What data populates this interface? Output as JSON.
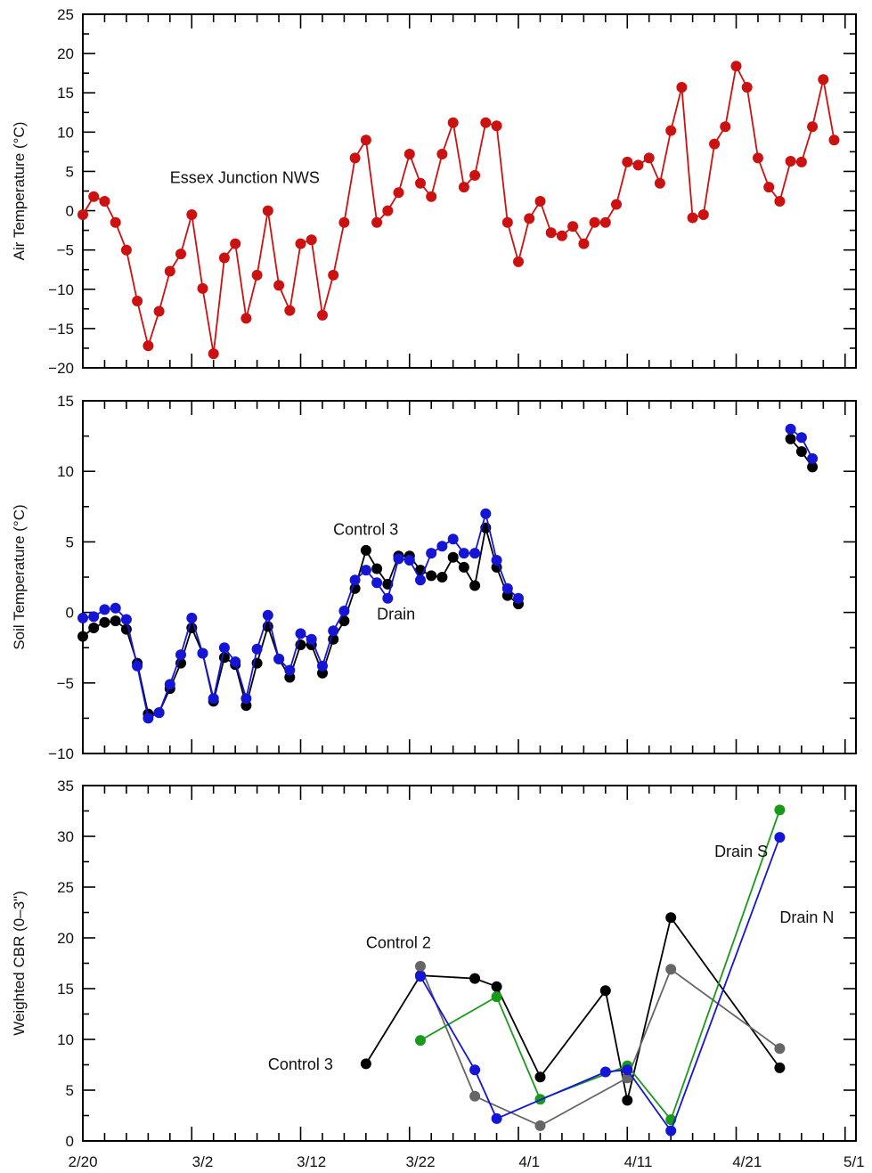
{
  "chart_data": [
    {
      "type": "line",
      "ylabel": "Air Temperature (°C)",
      "xlabel": "",
      "ylim": [
        -20,
        25
      ],
      "yticks": [
        -20,
        -15,
        -10,
        -5,
        0,
        5,
        10,
        15,
        20,
        25
      ],
      "xrange": [
        "2/20",
        "5/1"
      ],
      "grid": false,
      "annotations": [
        {
          "text": "Essex Junction NWS",
          "x": "2/28",
          "y": 3.5
        }
      ],
      "series": [
        {
          "name": "Essex Junction NWS",
          "color": "#cc1111",
          "points": [
            [
              "2/20",
              -0.5
            ],
            [
              "2/21",
              1.8
            ],
            [
              "2/22",
              1.2
            ],
            [
              "2/23",
              -1.5
            ],
            [
              "2/24",
              -5
            ],
            [
              "2/25",
              -11.5
            ],
            [
              "2/26",
              -17.2
            ],
            [
              "2/27",
              -12.8
            ],
            [
              "2/28",
              -7.7
            ],
            [
              "2/29",
              -5.5
            ],
            [
              "3/1",
              -0.5
            ],
            [
              "3/2",
              -9.9
            ],
            [
              "3/3",
              -18.2
            ],
            [
              "3/4",
              -6
            ],
            [
              "3/5",
              -4.2
            ],
            [
              "3/6",
              -13.7
            ],
            [
              "3/7",
              -8.2
            ],
            [
              "3/8",
              0
            ],
            [
              "3/9",
              -9.5
            ],
            [
              "3/10",
              -12.7
            ],
            [
              "3/11",
              -4.2
            ],
            [
              "3/12",
              -3.7
            ],
            [
              "3/13",
              -13.3
            ],
            [
              "3/14",
              -8.2
            ],
            [
              "3/15",
              -1.5
            ],
            [
              "3/16",
              6.7
            ],
            [
              "3/17",
              9
            ],
            [
              "3/18",
              -1.5
            ],
            [
              "3/19",
              0
            ],
            [
              "3/20",
              2.3
            ],
            [
              "3/21",
              7.2
            ],
            [
              "3/22",
              3.5
            ],
            [
              "3/23",
              1.8
            ],
            [
              "3/24",
              7.2
            ],
            [
              "3/25",
              11.2
            ],
            [
              "3/26",
              3
            ],
            [
              "3/27",
              4.5
            ],
            [
              "3/28",
              11.2
            ],
            [
              "3/29",
              10.8
            ],
            [
              "3/30",
              -1.5
            ],
            [
              "3/31",
              -6.5
            ],
            [
              "4/1",
              -1
            ],
            [
              "4/2",
              1.2
            ],
            [
              "4/3",
              -2.8
            ],
            [
              "4/4",
              -3.2
            ],
            [
              "4/5",
              -2
            ],
            [
              "4/6",
              -4.2
            ],
            [
              "4/7",
              -1.5
            ],
            [
              "4/8",
              -1.5
            ],
            [
              "4/9",
              0.8
            ],
            [
              "4/10",
              6.2
            ],
            [
              "4/11",
              5.8
            ],
            [
              "4/12",
              6.7
            ],
            [
              "4/13",
              3.5
            ],
            [
              "4/14",
              10.2
            ],
            [
              "4/15",
              15.7
            ],
            [
              "4/16",
              -0.9
            ],
            [
              "4/17",
              -0.5
            ],
            [
              "4/18",
              8.5
            ],
            [
              "4/19",
              10.7
            ],
            [
              "4/20",
              18.4
            ],
            [
              "4/21",
              15.7
            ],
            [
              "4/22",
              6.7
            ],
            [
              "4/23",
              3
            ],
            [
              "4/24",
              1.2
            ],
            [
              "4/25",
              6.3
            ],
            [
              "4/26",
              6.2
            ],
            [
              "4/27",
              10.7
            ],
            [
              "4/28",
              16.7
            ],
            [
              "4/29",
              9
            ]
          ]
        }
      ]
    },
    {
      "type": "line",
      "ylabel": "Soil Temperature (°C)",
      "xlabel": "",
      "ylim": [
        -10,
        15
      ],
      "yticks": [
        -10,
        -5,
        0,
        5,
        10,
        15
      ],
      "xrange": [
        "2/20",
        "5/1"
      ],
      "grid": false,
      "annotations": [
        {
          "text": "Control 3",
          "x": "3/14",
          "y": 5.5
        },
        {
          "text": "Drain",
          "x": "3/18",
          "y": -0.5
        }
      ],
      "series": [
        {
          "name": "Control 3",
          "color": "#000000",
          "points": [
            [
              "2/20",
              -1.7
            ],
            [
              "2/21",
              -1.1
            ],
            [
              "2/22",
              -0.7
            ],
            [
              "2/23",
              -0.6
            ],
            [
              "2/24",
              -1.2
            ],
            [
              "2/25",
              -3.6
            ],
            [
              "2/26",
              -7.2
            ],
            [
              "2/27",
              -7.1
            ],
            [
              "2/28",
              -5.4
            ],
            [
              "2/29",
              -3.6
            ],
            [
              "3/1",
              -1.1
            ],
            [
              "3/2",
              -2.9
            ],
            [
              "3/3",
              -6.3
            ],
            [
              "3/4",
              -3.2
            ],
            [
              "3/5",
              -3.7
            ],
            [
              "3/6",
              -6.6
            ],
            [
              "3/7",
              -3.6
            ],
            [
              "3/8",
              -1
            ],
            [
              "3/9",
              -3.3
            ],
            [
              "3/10",
              -4.6
            ],
            [
              "3/11",
              -2.3
            ],
            [
              "3/12",
              -2.3
            ],
            [
              "3/13",
              -4.3
            ],
            [
              "3/14",
              -1.9
            ],
            [
              "3/15",
              -0.6
            ],
            [
              "3/16",
              1.7
            ],
            [
              "3/17",
              4.4
            ],
            [
              "3/18",
              3.1
            ],
            [
              "3/19",
              2
            ],
            [
              "3/20",
              4
            ],
            [
              "3/21",
              4
            ],
            [
              "3/22",
              3
            ],
            [
              "3/23",
              2.6
            ],
            [
              "3/24",
              2.5
            ],
            [
              "3/25",
              3.9
            ],
            [
              "3/26",
              3.2
            ],
            [
              "3/27",
              1.9
            ],
            [
              "3/28",
              6
            ],
            [
              "3/29",
              3.2
            ],
            [
              "3/30",
              1.2
            ],
            [
              "3/31",
              0.6
            ],
            null,
            [
              "4/25",
              12.3
            ],
            [
              "4/26",
              11.4
            ],
            [
              "4/27",
              10.3
            ]
          ]
        },
        {
          "name": "Drain",
          "color": "#1515d6",
          "points": [
            [
              "2/20",
              -0.4
            ],
            [
              "2/21",
              -0.3
            ],
            [
              "2/22",
              0.2
            ],
            [
              "2/23",
              0.3
            ],
            [
              "2/24",
              -0.5
            ],
            [
              "2/25",
              -3.8
            ],
            [
              "2/26",
              -7.5
            ],
            [
              "2/27",
              -7.1
            ],
            [
              "2/28",
              -5.1
            ],
            [
              "2/29",
              -3
            ],
            [
              "3/1",
              -0.4
            ],
            [
              "3/2",
              -2.9
            ],
            [
              "3/3",
              -6.1
            ],
            [
              "3/4",
              -2.5
            ],
            [
              "3/5",
              -3.5
            ],
            [
              "3/6",
              -6.1
            ],
            [
              "3/7",
              -2.6
            ],
            [
              "3/8",
              -0.2
            ],
            [
              "3/9",
              -3.3
            ],
            [
              "3/10",
              -4.1
            ],
            [
              "3/11",
              -1.5
            ],
            [
              "3/12",
              -1.9
            ],
            [
              "3/13",
              -3.8
            ],
            [
              "3/14",
              -1.3
            ],
            [
              "3/15",
              0.1
            ],
            [
              "3/16",
              2.3
            ],
            [
              "3/17",
              3
            ],
            [
              "3/18",
              2.1
            ],
            [
              "3/19",
              1
            ],
            [
              "3/20",
              3.8
            ],
            [
              "3/21",
              3.7
            ],
            [
              "3/22",
              2.3
            ],
            [
              "3/23",
              4.2
            ],
            [
              "3/24",
              4.7
            ],
            [
              "3/25",
              5.2
            ],
            [
              "3/26",
              4.2
            ],
            [
              "3/27",
              4.2
            ],
            [
              "3/28",
              7
            ],
            [
              "3/29",
              3.7
            ],
            [
              "3/30",
              1.7
            ],
            [
              "3/31",
              1
            ],
            null,
            [
              "4/25",
              13
            ],
            [
              "4/26",
              12.4
            ],
            [
              "4/27",
              10.9
            ]
          ]
        }
      ]
    },
    {
      "type": "line",
      "ylabel": "Weighted CBR (0–3\")",
      "xlabel": "",
      "ylim": [
        0,
        35
      ],
      "yticks": [
        0,
        5,
        10,
        15,
        20,
        25,
        30,
        35
      ],
      "xrange": [
        "2/20",
        "5/1"
      ],
      "xticklabels": [
        "2/20",
        "3/2",
        "3/12",
        "3/22",
        "4/1",
        "4/11",
        "4/21",
        "5/1"
      ],
      "grid": false,
      "annotations": [
        {
          "text": "Control 3",
          "x": "3/8",
          "y": 7
        },
        {
          "text": "Control 2",
          "x": "3/17",
          "y": 19
        },
        {
          "text": "Drain S",
          "x": "4/18",
          "y": 28
        },
        {
          "text": "Drain N",
          "x": "4/24",
          "y": 21.5
        }
      ],
      "series": [
        {
          "name": "Control 3",
          "color": "#000000",
          "points": [
            [
              "3/17",
              7.6
            ],
            [
              "3/22",
              16.3
            ],
            [
              "3/27",
              16
            ],
            [
              "3/29",
              15.2
            ],
            [
              "4/2",
              6.3
            ],
            [
              "4/8",
              14.8
            ],
            [
              "4/10",
              4
            ],
            [
              "4/14",
              22
            ],
            [
              "4/24",
              7.2
            ]
          ]
        },
        {
          "name": "Control 2",
          "color": "#666666",
          "points": [
            [
              "3/22",
              17.2
            ],
            [
              "3/27",
              4.4
            ],
            [
              "4/2",
              1.5
            ],
            [
              "4/10",
              6.2
            ],
            [
              "4/14",
              16.9
            ],
            [
              "4/24",
              9.1
            ]
          ]
        },
        {
          "name": "Drain S",
          "color": "#1a9a1a",
          "points": [
            [
              "3/22",
              9.9
            ],
            [
              "3/29",
              14.2
            ],
            [
              "4/2",
              4.1
            ],
            [
              "4/10",
              7.4
            ],
            [
              "4/14",
              2.1
            ],
            [
              "4/24",
              32.6
            ]
          ]
        },
        {
          "name": "Drain N",
          "color": "#1515d6",
          "points": [
            [
              "3/22",
              16.2
            ],
            [
              "3/27",
              7
            ],
            [
              "3/29",
              2.2
            ],
            [
              "4/8",
              6.8
            ],
            [
              "4/10",
              7
            ],
            [
              "4/14",
              1
            ],
            [
              "4/24",
              29.9
            ]
          ]
        }
      ]
    }
  ]
}
